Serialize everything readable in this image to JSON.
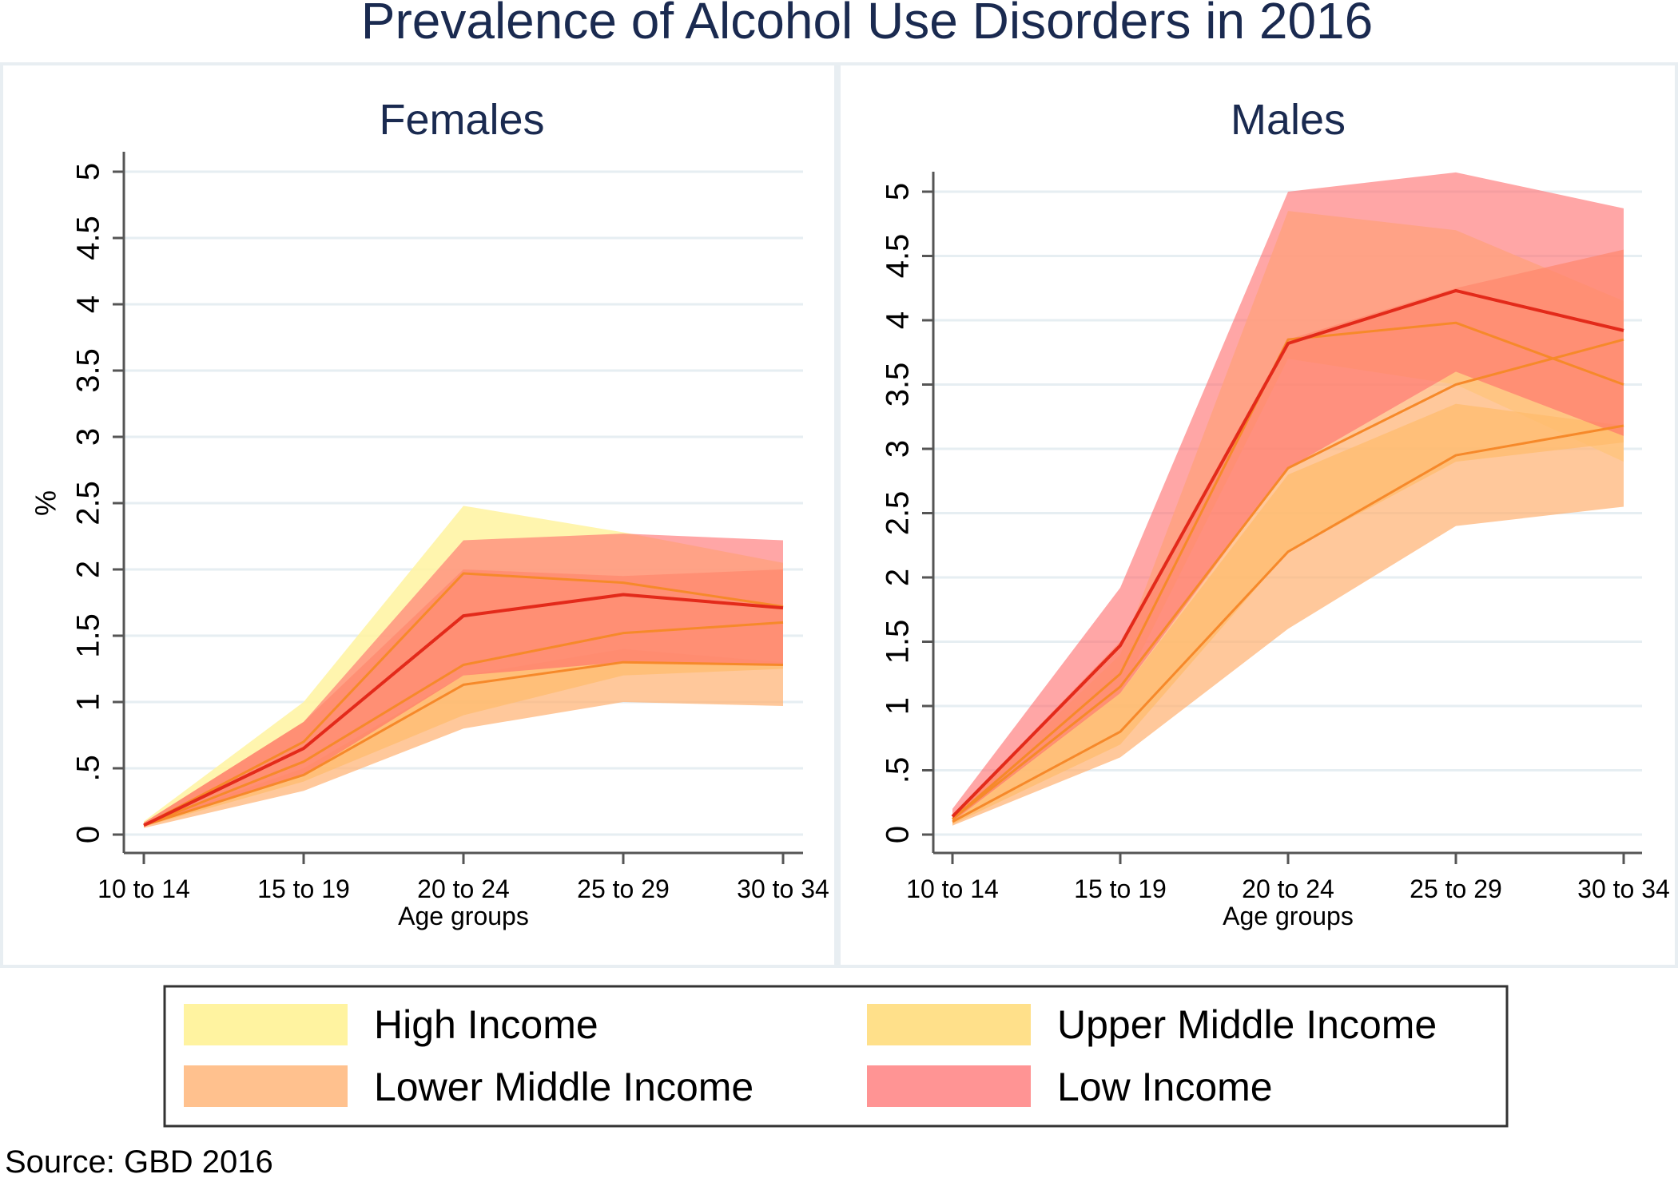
{
  "title": "Prevalence of Alcohol Use Disorders in 2016",
  "source": "Source: GBD 2016",
  "colors": {
    "high": "#fff3a0",
    "upper_middle": "#ffd45e",
    "lower_middle": "#ffb070",
    "low": "#ff6a6a",
    "line_low": "#e32a1a",
    "line_other": "#f6892a",
    "axis": "#555555",
    "grid": "#e6eef2",
    "panel_frame": "#e8eef2"
  },
  "legend": {
    "items": [
      {
        "key": "high",
        "label": "High Income"
      },
      {
        "key": "upper_middle",
        "label": "Upper Middle Income"
      },
      {
        "key": "lower_middle",
        "label": "Lower Middle Income"
      },
      {
        "key": "low",
        "label": "Low Income"
      }
    ]
  },
  "chart_data": [
    {
      "type": "area",
      "title": "Females",
      "xlabel": "Age groups",
      "ylabel": "%",
      "categories": [
        "10 to 14",
        "15 to 19",
        "20 to 24",
        "25 to 29",
        "30 to 34"
      ],
      "ylim": [
        0,
        5
      ],
      "yticks": [
        0,
        0.5,
        1,
        1.5,
        2,
        2.5,
        3,
        3.5,
        4,
        4.5,
        5
      ],
      "ytick_labels": [
        "0",
        ".5",
        "1",
        "1.5",
        "2",
        "2.5",
        "3",
        "3.5",
        "4",
        "4.5",
        "5"
      ],
      "series": [
        {
          "name": "High Income",
          "key": "high",
          "lower": [
            0.06,
            0.45,
            1.2,
            1.4,
            1.3
          ],
          "upper": [
            0.1,
            1.0,
            2.48,
            2.28,
            2.05
          ]
        },
        {
          "name": "Upper Middle Income",
          "key": "upper_middle",
          "lower": [
            0.06,
            0.4,
            0.9,
            1.2,
            1.25
          ],
          "upper": [
            0.08,
            0.5,
            1.2,
            1.4,
            1.3
          ]
        },
        {
          "name": "Lower Middle Income",
          "key": "lower_middle",
          "lower": [
            0.05,
            0.33,
            0.8,
            1.0,
            0.97
          ],
          "upper": [
            0.09,
            0.85,
            2.0,
            1.95,
            2.0
          ]
        },
        {
          "name": "Low Income",
          "key": "low",
          "lower": [
            0.06,
            0.45,
            1.2,
            1.3,
            1.28
          ],
          "upper": [
            0.09,
            0.85,
            2.22,
            2.27,
            2.22
          ]
        }
      ],
      "lines": [
        {
          "key": "high",
          "values": [
            0.07,
            0.7,
            1.97,
            1.9,
            1.72
          ]
        },
        {
          "key": "upper_middle",
          "values": [
            0.07,
            0.45,
            1.13,
            1.3,
            1.28
          ]
        },
        {
          "key": "lower_middle",
          "values": [
            0.07,
            0.55,
            1.28,
            1.52,
            1.6
          ]
        },
        {
          "key": "low",
          "values": [
            0.07,
            0.65,
            1.65,
            1.81,
            1.71
          ]
        }
      ]
    },
    {
      "type": "area",
      "title": "Males",
      "xlabel": "Age groups",
      "ylabel": "",
      "categories": [
        "10 to 14",
        "15 to 19",
        "20 to 24",
        "25 to 29",
        "30 to 34"
      ],
      "ylim": [
        0,
        5
      ],
      "yticks": [
        0,
        0.5,
        1,
        1.5,
        2,
        2.5,
        3,
        3.5,
        4,
        4.5,
        5
      ],
      "ytick_labels": [
        "0",
        ".5",
        "1",
        "1.5",
        "2",
        "2.5",
        "3",
        "3.5",
        "4",
        "4.5",
        "5"
      ],
      "series": [
        {
          "name": "High Income",
          "key": "high",
          "lower": [
            0.1,
            1.1,
            3.7,
            3.5,
            2.9
          ],
          "upper": [
            0.15,
            1.4,
            4.85,
            4.7,
            4.15
          ]
        },
        {
          "name": "Upper Middle Income",
          "key": "upper_middle",
          "lower": [
            0.08,
            0.7,
            2.2,
            2.9,
            3.05
          ],
          "upper": [
            0.12,
            1.1,
            2.8,
            3.35,
            3.18
          ]
        },
        {
          "name": "Lower Middle Income",
          "key": "lower_middle",
          "lower": [
            0.07,
            0.6,
            1.6,
            2.4,
            2.55
          ],
          "upper": [
            0.15,
            1.5,
            3.85,
            4.25,
            4.55
          ]
        },
        {
          "name": "Low Income",
          "key": "low",
          "lower": [
            0.1,
            1.1,
            2.85,
            3.6,
            3.1
          ],
          "upper": [
            0.2,
            1.92,
            5.0,
            5.15,
            4.87
          ]
        }
      ],
      "lines": [
        {
          "key": "high",
          "values": [
            0.12,
            1.25,
            3.85,
            3.98,
            3.5
          ]
        },
        {
          "key": "upper_middle",
          "values": [
            0.1,
            0.8,
            2.2,
            2.95,
            3.18
          ]
        },
        {
          "key": "lower_middle",
          "values": [
            0.12,
            1.15,
            2.85,
            3.5,
            3.85
          ]
        },
        {
          "key": "low",
          "values": [
            0.14,
            1.47,
            3.82,
            4.23,
            3.92
          ]
        }
      ]
    }
  ]
}
